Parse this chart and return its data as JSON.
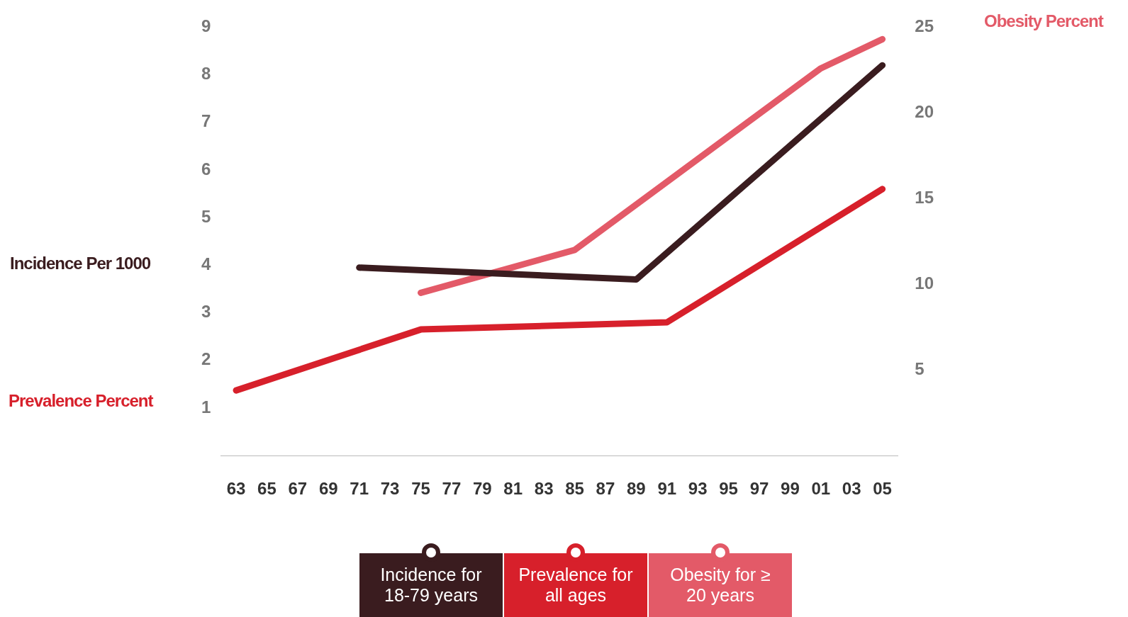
{
  "chart_data": {
    "type": "line",
    "ylabel": "Incidence Per 1000",
    "y2label": "Obesity Percent",
    "annotations": [
      "Prevalence Percent"
    ],
    "categories": [
      "63",
      "65",
      "67",
      "69",
      "71",
      "73",
      "75",
      "77",
      "79",
      "81",
      "83",
      "85",
      "87",
      "89",
      "91",
      "93",
      "95",
      "97",
      "99",
      "01",
      "03",
      "05"
    ],
    "series": [
      {
        "name": "Incidence for 18-79 years",
        "color": "#3a1c1f",
        "values": [
          null,
          null,
          null,
          null,
          3.95,
          null,
          null,
          null,
          null,
          null,
          null,
          null,
          null,
          3.7,
          null,
          null,
          null,
          null,
          null,
          null,
          null,
          8.2
        ]
      },
      {
        "name": "Prevalence for all ages",
        "color": "#d7202b",
        "values": [
          1.37,
          null,
          null,
          null,
          null,
          null,
          2.65,
          null,
          null,
          null,
          null,
          null,
          null,
          null,
          2.8,
          null,
          null,
          null,
          null,
          null,
          null,
          5.6
        ]
      },
      {
        "name": "Obesity for ≥ 20 years",
        "color": "#e35a68",
        "axis": "y2",
        "values": [
          null,
          null,
          null,
          null,
          null,
          null,
          9.5,
          null,
          null,
          null,
          null,
          12,
          null,
          null,
          null,
          null,
          null,
          null,
          null,
          22.6,
          null,
          24.3
        ]
      }
    ],
    "ylim": [
      0,
      9
    ],
    "yticks": [
      1,
      2,
      3,
      4,
      5,
      6,
      7,
      8,
      9
    ],
    "y2lim": [
      0,
      25
    ],
    "y2ticks": [
      5,
      10,
      15,
      20,
      25
    ],
    "grid": false,
    "legend": "bottom",
    "marker": "none",
    "line_style": "solid"
  }
}
